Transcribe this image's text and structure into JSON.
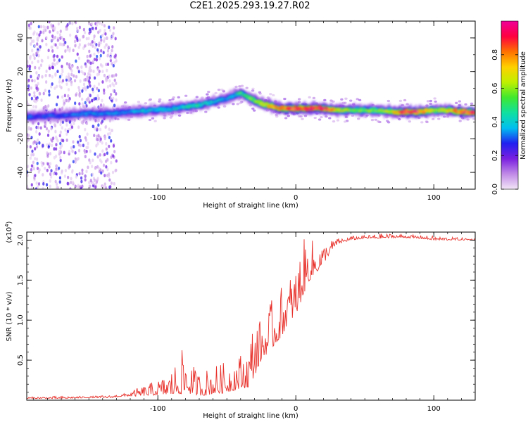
{
  "title": "C2E1.2025.293.19.27.R02",
  "colors": {
    "snr_line": "#e8302a",
    "frame": "#000000",
    "colorbar_stops": [
      "#f3e6f7",
      "#c08ae6",
      "#7a1fe0",
      "#2020f0",
      "#00bff0",
      "#10e0a0",
      "#40e830",
      "#c0f000",
      "#ffd000",
      "#ff7000",
      "#ff0040",
      "#f00098"
    ]
  },
  "chart_data": [
    {
      "type": "heatmap",
      "title": "C2E1.2025.293.19.27.R02",
      "xlabel": "Height of straight line (km)",
      "ylabel": "Frequency (Hz)",
      "xlim": [
        -195,
        130
      ],
      "ylim": [
        -50,
        50
      ],
      "x_ticks": [
        -100,
        0,
        100
      ],
      "x_tick_labels": [
        "-100",
        "0",
        "100"
      ],
      "y_ticks": [
        -40,
        -20,
        0,
        20,
        40
      ],
      "y_tick_labels": [
        "-40",
        "-20",
        "0",
        "20",
        "40"
      ],
      "colorbar": {
        "label": "Normalized spectral amplitude",
        "range": [
          0,
          1
        ],
        "ticks": [
          0.0,
          0.2,
          0.4,
          0.6,
          0.8
        ],
        "tick_labels": [
          "0.0",
          "0.2",
          "0.4",
          "0.6",
          "0.8"
        ]
      },
      "ridge": {
        "x": [
          -195,
          -170,
          -150,
          -135,
          -120,
          -100,
          -90,
          -80,
          -70,
          -60,
          -50,
          -45,
          -40,
          -35,
          -30,
          -25,
          -20,
          -15,
          -10,
          0,
          10,
          20,
          30,
          40,
          50,
          60,
          70,
          80,
          90,
          100,
          110,
          120,
          130
        ],
        "freq": [
          -7,
          -6,
          -5,
          -5,
          -4,
          -3,
          -2,
          -1,
          0,
          2,
          4,
          6,
          7,
          5,
          3,
          1,
          0,
          -1,
          -2,
          -2,
          -2,
          -2,
          -3,
          -3,
          -3,
          -3,
          -4,
          -4,
          -4,
          -3,
          -3,
          -4,
          -4
        ],
        "amplitude": [
          0.3,
          0.3,
          0.35,
          0.35,
          0.35,
          0.4,
          0.4,
          0.45,
          0.45,
          0.4,
          0.35,
          0.4,
          0.5,
          0.55,
          0.6,
          0.65,
          0.75,
          0.8,
          0.85,
          0.9,
          0.95,
          0.95,
          0.7,
          0.6,
          0.55,
          0.6,
          0.7,
          0.95,
          0.9,
          0.6,
          0.7,
          0.9,
          0.9
        ]
      },
      "noise_region_x": [
        -195,
        -130
      ]
    },
    {
      "type": "line",
      "xlabel": "Height of straight line (km)",
      "ylabel": "SNR (10 * v/v)",
      "y_multiplier_label": "(x10",
      "y_multiplier_exponent": "4",
      "y_multiplier_suffix": ")",
      "xlim": [
        -195,
        130
      ],
      "ylim": [
        0,
        2.1
      ],
      "x_ticks": [
        -100,
        0,
        100
      ],
      "x_tick_labels": [
        "-100",
        "0",
        "100"
      ],
      "y_ticks": [
        0.5,
        1.0,
        1.5,
        2.0
      ],
      "y_tick_labels": [
        "0.5",
        "1.0",
        "1.5",
        "2.0"
      ],
      "series": [
        {
          "name": "SNR",
          "x": [
            -195,
            -170,
            -150,
            -135,
            -125,
            -115,
            -105,
            -95,
            -90,
            -85,
            -80,
            -75,
            -70,
            -65,
            -60,
            -55,
            -50,
            -45,
            -40,
            -35,
            -30,
            -25,
            -20,
            -15,
            -10,
            -5,
            0,
            5,
            10,
            15,
            20,
            25,
            30,
            40,
            50,
            60,
            70,
            80,
            90,
            100,
            110,
            120,
            130
          ],
          "y_floor": [
            0.02,
            0.02,
            0.03,
            0.03,
            0.05,
            0.05,
            0.06,
            0.07,
            0.07,
            0.08,
            0.08,
            0.08,
            0.06,
            0.06,
            0.08,
            0.08,
            0.1,
            0.12,
            0.15,
            0.15,
            0.3,
            0.5,
            0.6,
            0.7,
            0.8,
            1.0,
            1.05,
            1.3,
            1.5,
            1.6,
            1.7,
            1.85,
            1.95,
            2.0,
            2.02,
            2.02,
            2.03,
            2.03,
            2.02,
            2.0,
            2.0,
            2.0,
            2.0
          ],
          "y_peak": [
            0.04,
            0.05,
            0.05,
            0.06,
            0.08,
            0.15,
            0.22,
            0.3,
            0.4,
            0.55,
            0.7,
            0.45,
            0.35,
            0.4,
            0.45,
            0.45,
            0.5,
            0.55,
            0.6,
            0.65,
            1.1,
            1.0,
            1.2,
            1.3,
            1.45,
            1.55,
            1.7,
            2.0,
            2.05,
            1.95,
            1.95,
            2.0,
            2.02,
            2.05,
            2.06,
            2.08,
            2.08,
            2.07,
            2.06,
            2.05,
            2.04,
            2.03,
            2.02
          ]
        }
      ]
    }
  ]
}
